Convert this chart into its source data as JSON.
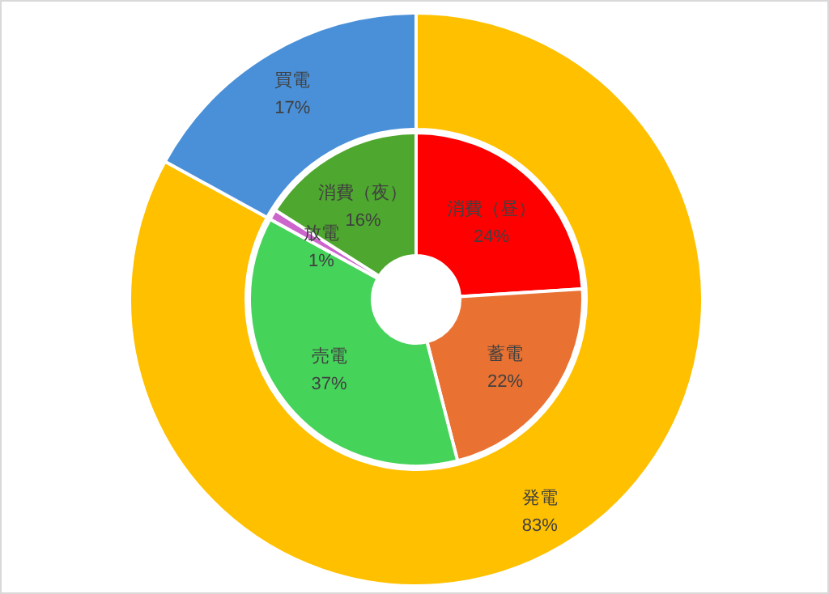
{
  "chart_data": [
    {
      "type": "donut",
      "categories": [
        "発電",
        "買電"
      ],
      "values": [
        83,
        17
      ],
      "colors": [
        "#ffc000",
        "#4a90d9"
      ],
      "value_labels": [
        "83%",
        "17%"
      ]
    },
    {
      "type": "donut",
      "categories": [
        "消費（昼）",
        "蓄電",
        "売電",
        "放電",
        "消費（夜）"
      ],
      "values": [
        24,
        22,
        37,
        1,
        16
      ],
      "colors": [
        "#ff0000",
        "#e97132",
        "#46d35a",
        "#cc66cc",
        "#4ea72e"
      ],
      "value_labels": [
        "24%",
        "22%",
        "37%",
        "1%",
        "16%"
      ]
    }
  ]
}
